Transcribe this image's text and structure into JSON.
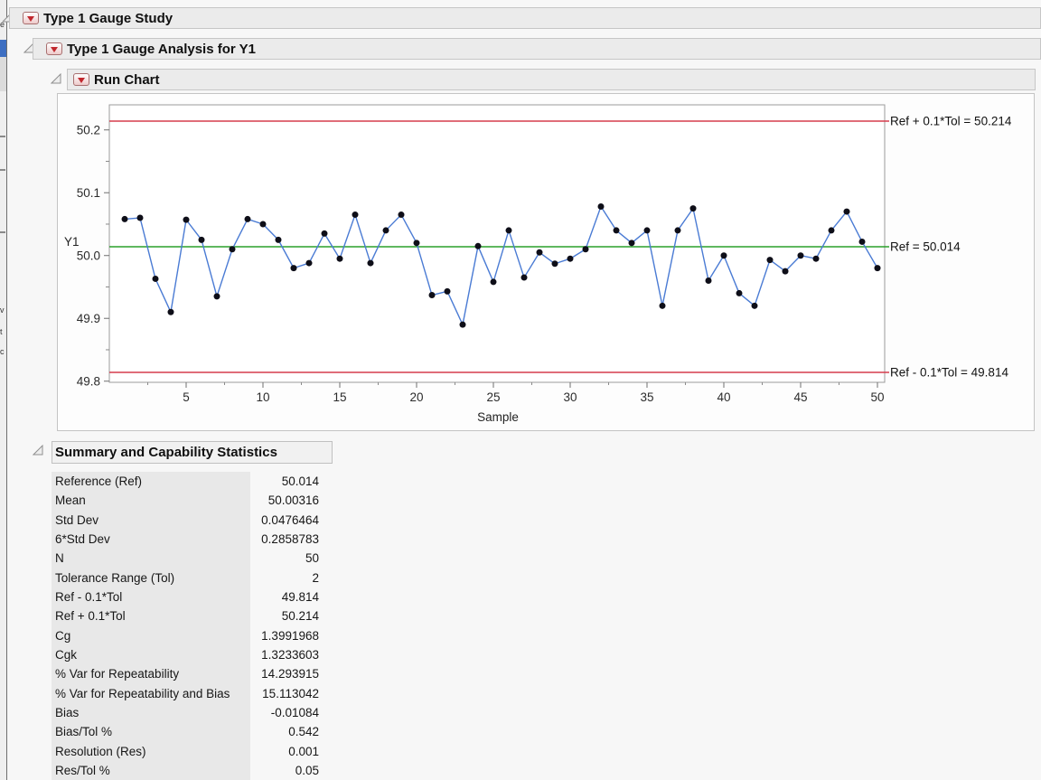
{
  "outline_bars": [
    {
      "title": "Type 1 Gauge Study"
    },
    {
      "title": "Type 1 Gauge Analysis for Y1"
    },
    {
      "title": "Run Chart"
    },
    {
      "title": "Summary and Capability Statistics"
    }
  ],
  "chart_data": {
    "type": "line",
    "title": "Run Chart",
    "xlabel": "Sample",
    "ylabel": "Y1",
    "x": [
      1,
      2,
      3,
      4,
      5,
      6,
      7,
      8,
      9,
      10,
      11,
      12,
      13,
      14,
      15,
      16,
      17,
      18,
      19,
      20,
      21,
      22,
      23,
      24,
      25,
      26,
      27,
      28,
      29,
      30,
      31,
      32,
      33,
      34,
      35,
      36,
      37,
      38,
      39,
      40,
      41,
      42,
      43,
      44,
      45,
      46,
      47,
      48,
      49,
      50
    ],
    "y": [
      50.058,
      50.06,
      49.963,
      49.91,
      50.057,
      50.025,
      49.935,
      50.01,
      50.058,
      50.05,
      50.025,
      49.98,
      49.988,
      50.035,
      49.995,
      50.065,
      49.988,
      50.04,
      50.065,
      50.02,
      49.937,
      49.943,
      49.89,
      50.015,
      49.958,
      50.04,
      49.965,
      50.005,
      49.987,
      49.995,
      50.01,
      50.078,
      50.04,
      50.02,
      50.04,
      49.92,
      50.04,
      50.075,
      49.96,
      50.0,
      49.94,
      49.92,
      49.993,
      49.975,
      50.0,
      49.995,
      50.04,
      50.07,
      50.022,
      49.98
    ],
    "xlim": [
      0.4,
      50.6
    ],
    "ylim": [
      49.795,
      50.245
    ],
    "xticks": [
      5,
      10,
      15,
      20,
      25,
      30,
      35,
      40,
      45,
      50
    ],
    "yticks": [
      "49.8",
      "49.9",
      "50.0",
      "50.1",
      "50.2"
    ],
    "grid": false,
    "legend": "none",
    "ref_lines": [
      {
        "value": 50.214,
        "label": "Ref + 0.1*Tol = 50.214",
        "color": "#d63d4d"
      },
      {
        "value": 50.014,
        "label": "Ref = 50.014",
        "color": "#2aa02a"
      },
      {
        "value": 49.814,
        "label": "Ref - 0.1*Tol = 49.814",
        "color": "#d63d4d"
      }
    ],
    "line_color": "#4a7bd4",
    "marker_color": "#0e0e18"
  },
  "summary_table": {
    "rows": [
      {
        "label": "Reference (Ref)",
        "value": "50.014"
      },
      {
        "label": "Mean",
        "value": "50.00316"
      },
      {
        "label": "Std Dev",
        "value": "0.0476464"
      },
      {
        "label": "6*Std Dev",
        "value": "0.2858783"
      },
      {
        "label": "N",
        "value": "50"
      },
      {
        "label": "Tolerance Range (Tol)",
        "value": "2"
      },
      {
        "label": "Ref - 0.1*Tol",
        "value": "49.814"
      },
      {
        "label": "Ref + 0.1*Tol",
        "value": "50.214"
      },
      {
        "label": "Cg",
        "value": "1.3991968"
      },
      {
        "label": "Cgk",
        "value": "1.3233603"
      },
      {
        "label": "% Var for Repeatability",
        "value": "14.293915"
      },
      {
        "label": "% Var for Repeatability and Bias",
        "value": "15.113042"
      },
      {
        "label": "Bias",
        "value": "-0.01084"
      },
      {
        "label": "Bias/Tol %",
        "value": "0.542"
      },
      {
        "label": "Resolution (Res)",
        "value": "0.001"
      },
      {
        "label": "Res/Tol %",
        "value": "0.05"
      }
    ]
  },
  "edge_fragments": [
    "e",
    "v",
    "t",
    "c"
  ]
}
